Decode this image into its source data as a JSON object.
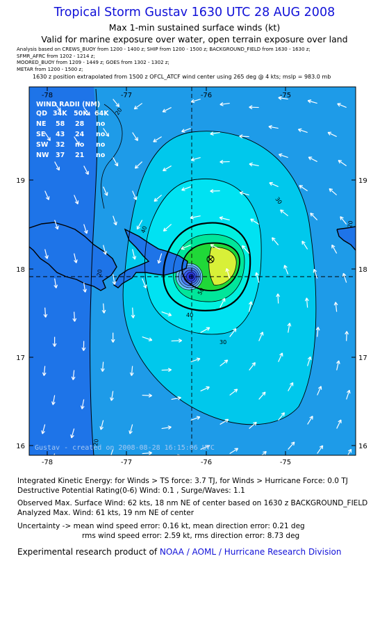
{
  "header": {
    "title": "Tropical Storm Gustav 1630 UTC 28 AUG 2008",
    "subtitle": "Max 1-min sustained surface winds (kt)",
    "valid": "Valid for marine exposure over water, open terrain exposure over land",
    "analysis_lines": [
      "Analysis based on  CREWS_BUOY from 1200 - 1400 z;  SHIP from 1200 - 1500 z;  BACKGROUND_FIELD from 1630 - 1630 z;",
      "SFMR_AFRC from 1202 - 1214 z;",
      "MOORED_BUOY from 1209 - 1449 z;  GOES from 1302 - 1302 z;",
      "METAR from 1200 - 1500 z;"
    ],
    "extrapolation": "1630 z position extrapolated from 1500 z OFCL_ATCF wind center using 265 deg @ 4 kts; mslp = 983.0 mb"
  },
  "map": {
    "lon_labels": [
      "-78",
      "-77",
      "-76",
      "-75"
    ],
    "lat_labels": [
      "19",
      "18",
      "17",
      "16"
    ],
    "contour_labels": [
      "20",
      "20",
      "20",
      "30",
      "30",
      "40",
      "40",
      "50",
      "20"
    ],
    "credit": "Gustav - created on 2008-08-28 16:15:06 UTC",
    "wind_radii": {
      "title": "WIND RADII (NM)",
      "header": [
        "QD",
        "34K",
        "50K",
        "64K"
      ],
      "rows": [
        [
          "NE",
          "58",
          "28",
          "no"
        ],
        [
          "SE",
          "43",
          "24",
          "no"
        ],
        [
          "SW",
          "32",
          "no",
          "no"
        ],
        [
          "NW",
          "37",
          "21",
          "no"
        ]
      ]
    },
    "colors": {
      "outer": "#1e74e8",
      "band20": "#1e9be8",
      "band30": "#00c8ec",
      "band40": "#00e2f2",
      "band45": "#00f0e0",
      "band50": "#00e69a",
      "band55": "#20d838",
      "band60": "#d8f038",
      "land": "#1e74e8"
    }
  },
  "stats": {
    "ike": "Integrated Kinetic Energy:  for Winds > TS force: 3.7 TJ,  for Winds > Hurricane Force: 0.0 TJ",
    "dpr": "Destructive Potential Rating(0-6)   Wind:  0.1 , Surge/Waves: 1.1",
    "obs_max": "Observed Max. Surface Wind: 62 kts, 18 nm NE of center based on 1630 z BACKGROUND_FIELD",
    "ana_max": "Analyzed Max. Wind: 61 kts, 19 nm NE of center",
    "uncert1": "Uncertainty -> mean wind speed error: 0.16 kt,   mean direction error: 0.21 deg",
    "uncert2": "rms wind speed error: 2.59 kt,   rms direction error: 8.73 deg",
    "credit_prefix": "Experimental research product of ",
    "credit_org": "NOAA / AOML / Hurricane Research Division"
  }
}
